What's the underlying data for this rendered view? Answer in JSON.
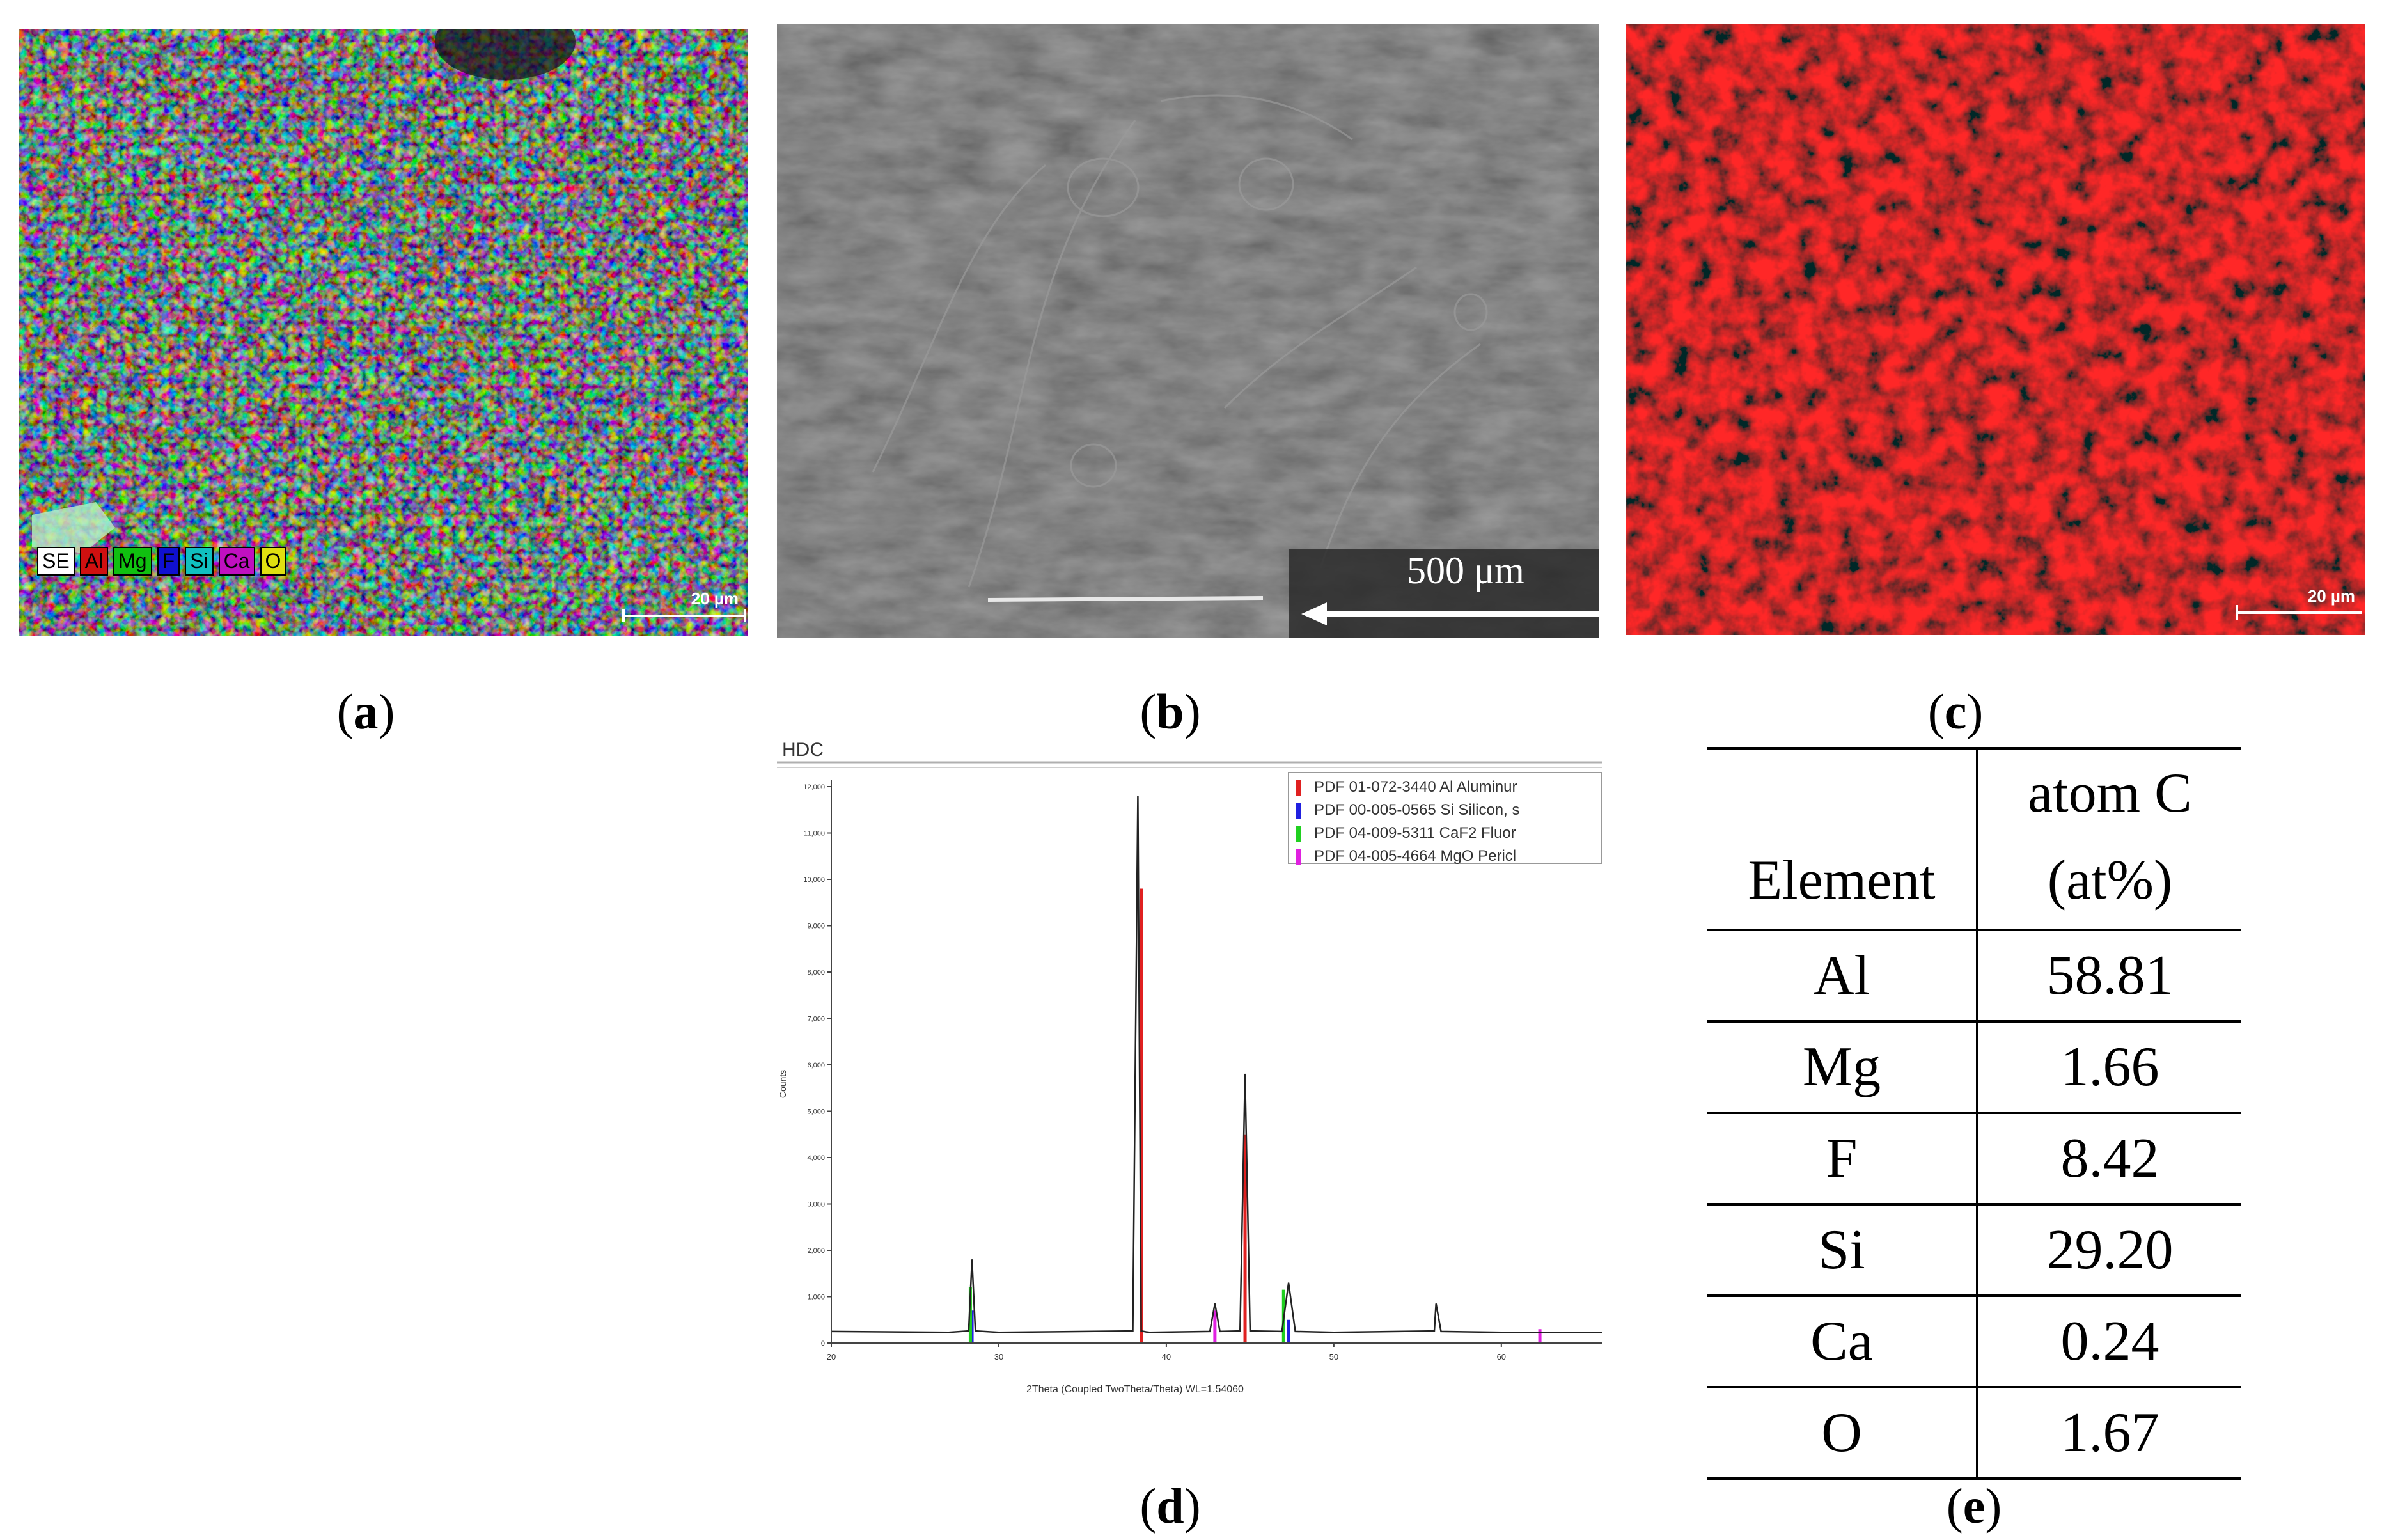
{
  "panel_a": {
    "legend": [
      "SE",
      "Al",
      "Mg",
      "F",
      "Si",
      "Ca",
      "O"
    ],
    "legend_colors": [
      "#ffffff",
      "#d01010",
      "#10c010",
      "#1010d0",
      "#10c0c0",
      "#c010c0",
      "#e0e010"
    ],
    "scale_label": "20 µm"
  },
  "panel_b": {
    "scale_label": "500 μm"
  },
  "panel_c": {
    "scale_label": "20 µm"
  },
  "panel_d": {
    "title": "HDC",
    "legend": [
      {
        "label": "PDF 01-072-3440 Al Aluminur",
        "color": "#e02020"
      },
      {
        "label": "PDF 00-005-0565 Si Silicon, s",
        "color": "#2020e0"
      },
      {
        "label": "PDF 04-009-5311 CaF2 Fluor",
        "color": "#20d020"
      },
      {
        "label": "PDF 04-005-4664 MgO Pericl",
        "color": "#e020e0"
      }
    ],
    "ylabel": "Counts",
    "xlabel": "2Theta (Coupled TwoTheta/Theta) WL=1.54060"
  },
  "chart_data": {
    "type": "line",
    "title": "HDC",
    "xlabel": "2Theta (Coupled TwoTheta/Theta) WL=1.54060",
    "ylabel": "Counts",
    "xlim": [
      20,
      66
    ],
    "ylim": [
      0,
      12000
    ],
    "yticks": [
      "0",
      "1,000",
      "2,000",
      "3,000",
      "4,000",
      "5,000",
      "6,000",
      "7,000",
      "8,000",
      "9,000",
      "10,000",
      "11,000",
      "12,000"
    ],
    "xticks": [
      "20",
      "30",
      "40",
      "50",
      "60"
    ],
    "x": [
      20,
      27,
      28.2,
      28.4,
      28.6,
      30,
      38.0,
      38.3,
      38.5,
      38.8,
      39,
      42.6,
      42.9,
      43.2,
      44.4,
      44.7,
      45.0,
      46.9,
      47.3,
      47.7,
      50,
      56.0,
      56.1,
      56.4,
      60,
      66
    ],
    "y": [
      250,
      230,
      260,
      1800,
      260,
      230,
      260,
      11800,
      260,
      240,
      230,
      250,
      850,
      250,
      260,
      5800,
      260,
      250,
      1300,
      250,
      230,
      260,
      850,
      250,
      230,
      230
    ],
    "reference_peaks": [
      {
        "series": "Al",
        "x": [
          38.5,
          44.7
        ],
        "y": [
          9800,
          4500
        ]
      },
      {
        "series": "Si",
        "x": [
          28.4,
          47.3
        ],
        "y": [
          700,
          500
        ]
      },
      {
        "series": "CaF2",
        "x": [
          28.3,
          47.0
        ],
        "y": [
          1200,
          1150
        ]
      },
      {
        "series": "MgO",
        "x": [
          42.9,
          62.3
        ],
        "y": [
          700,
          300
        ]
      }
    ]
  },
  "captions": {
    "a": "a",
    "b": "b",
    "c": "c",
    "d": "d",
    "e": "e"
  },
  "table": {
    "header": [
      "Element",
      "atom C",
      "(at%)"
    ],
    "rows": [
      {
        "element": "Al",
        "value": "58.81"
      },
      {
        "element": "Mg",
        "value": "1.66"
      },
      {
        "element": "F",
        "value": "8.42"
      },
      {
        "element": "Si",
        "value": "29.20"
      },
      {
        "element": "Ca",
        "value": "0.24"
      },
      {
        "element": "O",
        "value": "1.67"
      }
    ]
  }
}
